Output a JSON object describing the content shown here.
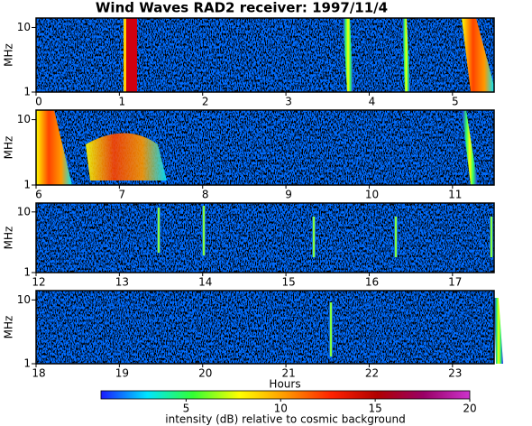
{
  "chart_data": [
    {
      "type": "heatmap",
      "title": "Wind Waves RAD2 receiver: 1997/11/4",
      "ylabel": "MHz",
      "xlim": [
        0,
        5.5
      ],
      "xticks": [
        0,
        1,
        2,
        3,
        4,
        5
      ],
      "ylim": [
        1,
        14
      ],
      "yticks": [
        1,
        10
      ],
      "log_y": true
    },
    {
      "type": "heatmap",
      "ylabel": "MHz",
      "xlim": [
        6,
        11.5
      ],
      "xticks": [
        6,
        7,
        8,
        9,
        10,
        11
      ],
      "ylim": [
        1,
        14
      ],
      "yticks": [
        1,
        10
      ],
      "log_y": true
    },
    {
      "type": "heatmap",
      "ylabel": "MHz",
      "xlim": [
        12,
        17.5
      ],
      "xticks": [
        12,
        13,
        14,
        15,
        16,
        17
      ],
      "ylim": [
        1,
        14
      ],
      "yticks": [
        1,
        10
      ],
      "log_y": true
    },
    {
      "type": "heatmap",
      "ylabel": "MHz",
      "xlabel": "Hours",
      "xlim": [
        18,
        23.5
      ],
      "xticks": [
        18,
        19,
        20,
        21,
        22,
        23
      ],
      "ylim": [
        1,
        14
      ],
      "yticks": [
        1,
        10
      ],
      "log_y": true
    },
    {
      "type": "colorbar",
      "label": "intensity (dB) relative to cosmic background",
      "clim": [
        0.5,
        20
      ],
      "ticks": [
        5,
        10,
        15,
        20
      ],
      "colors": [
        "#1a1aff",
        "#00e5ff",
        "#33ff33",
        "#ffff00",
        "#ff9900",
        "#ff2200",
        "#b00000",
        "#990066",
        "#cc33cc"
      ]
    }
  ]
}
